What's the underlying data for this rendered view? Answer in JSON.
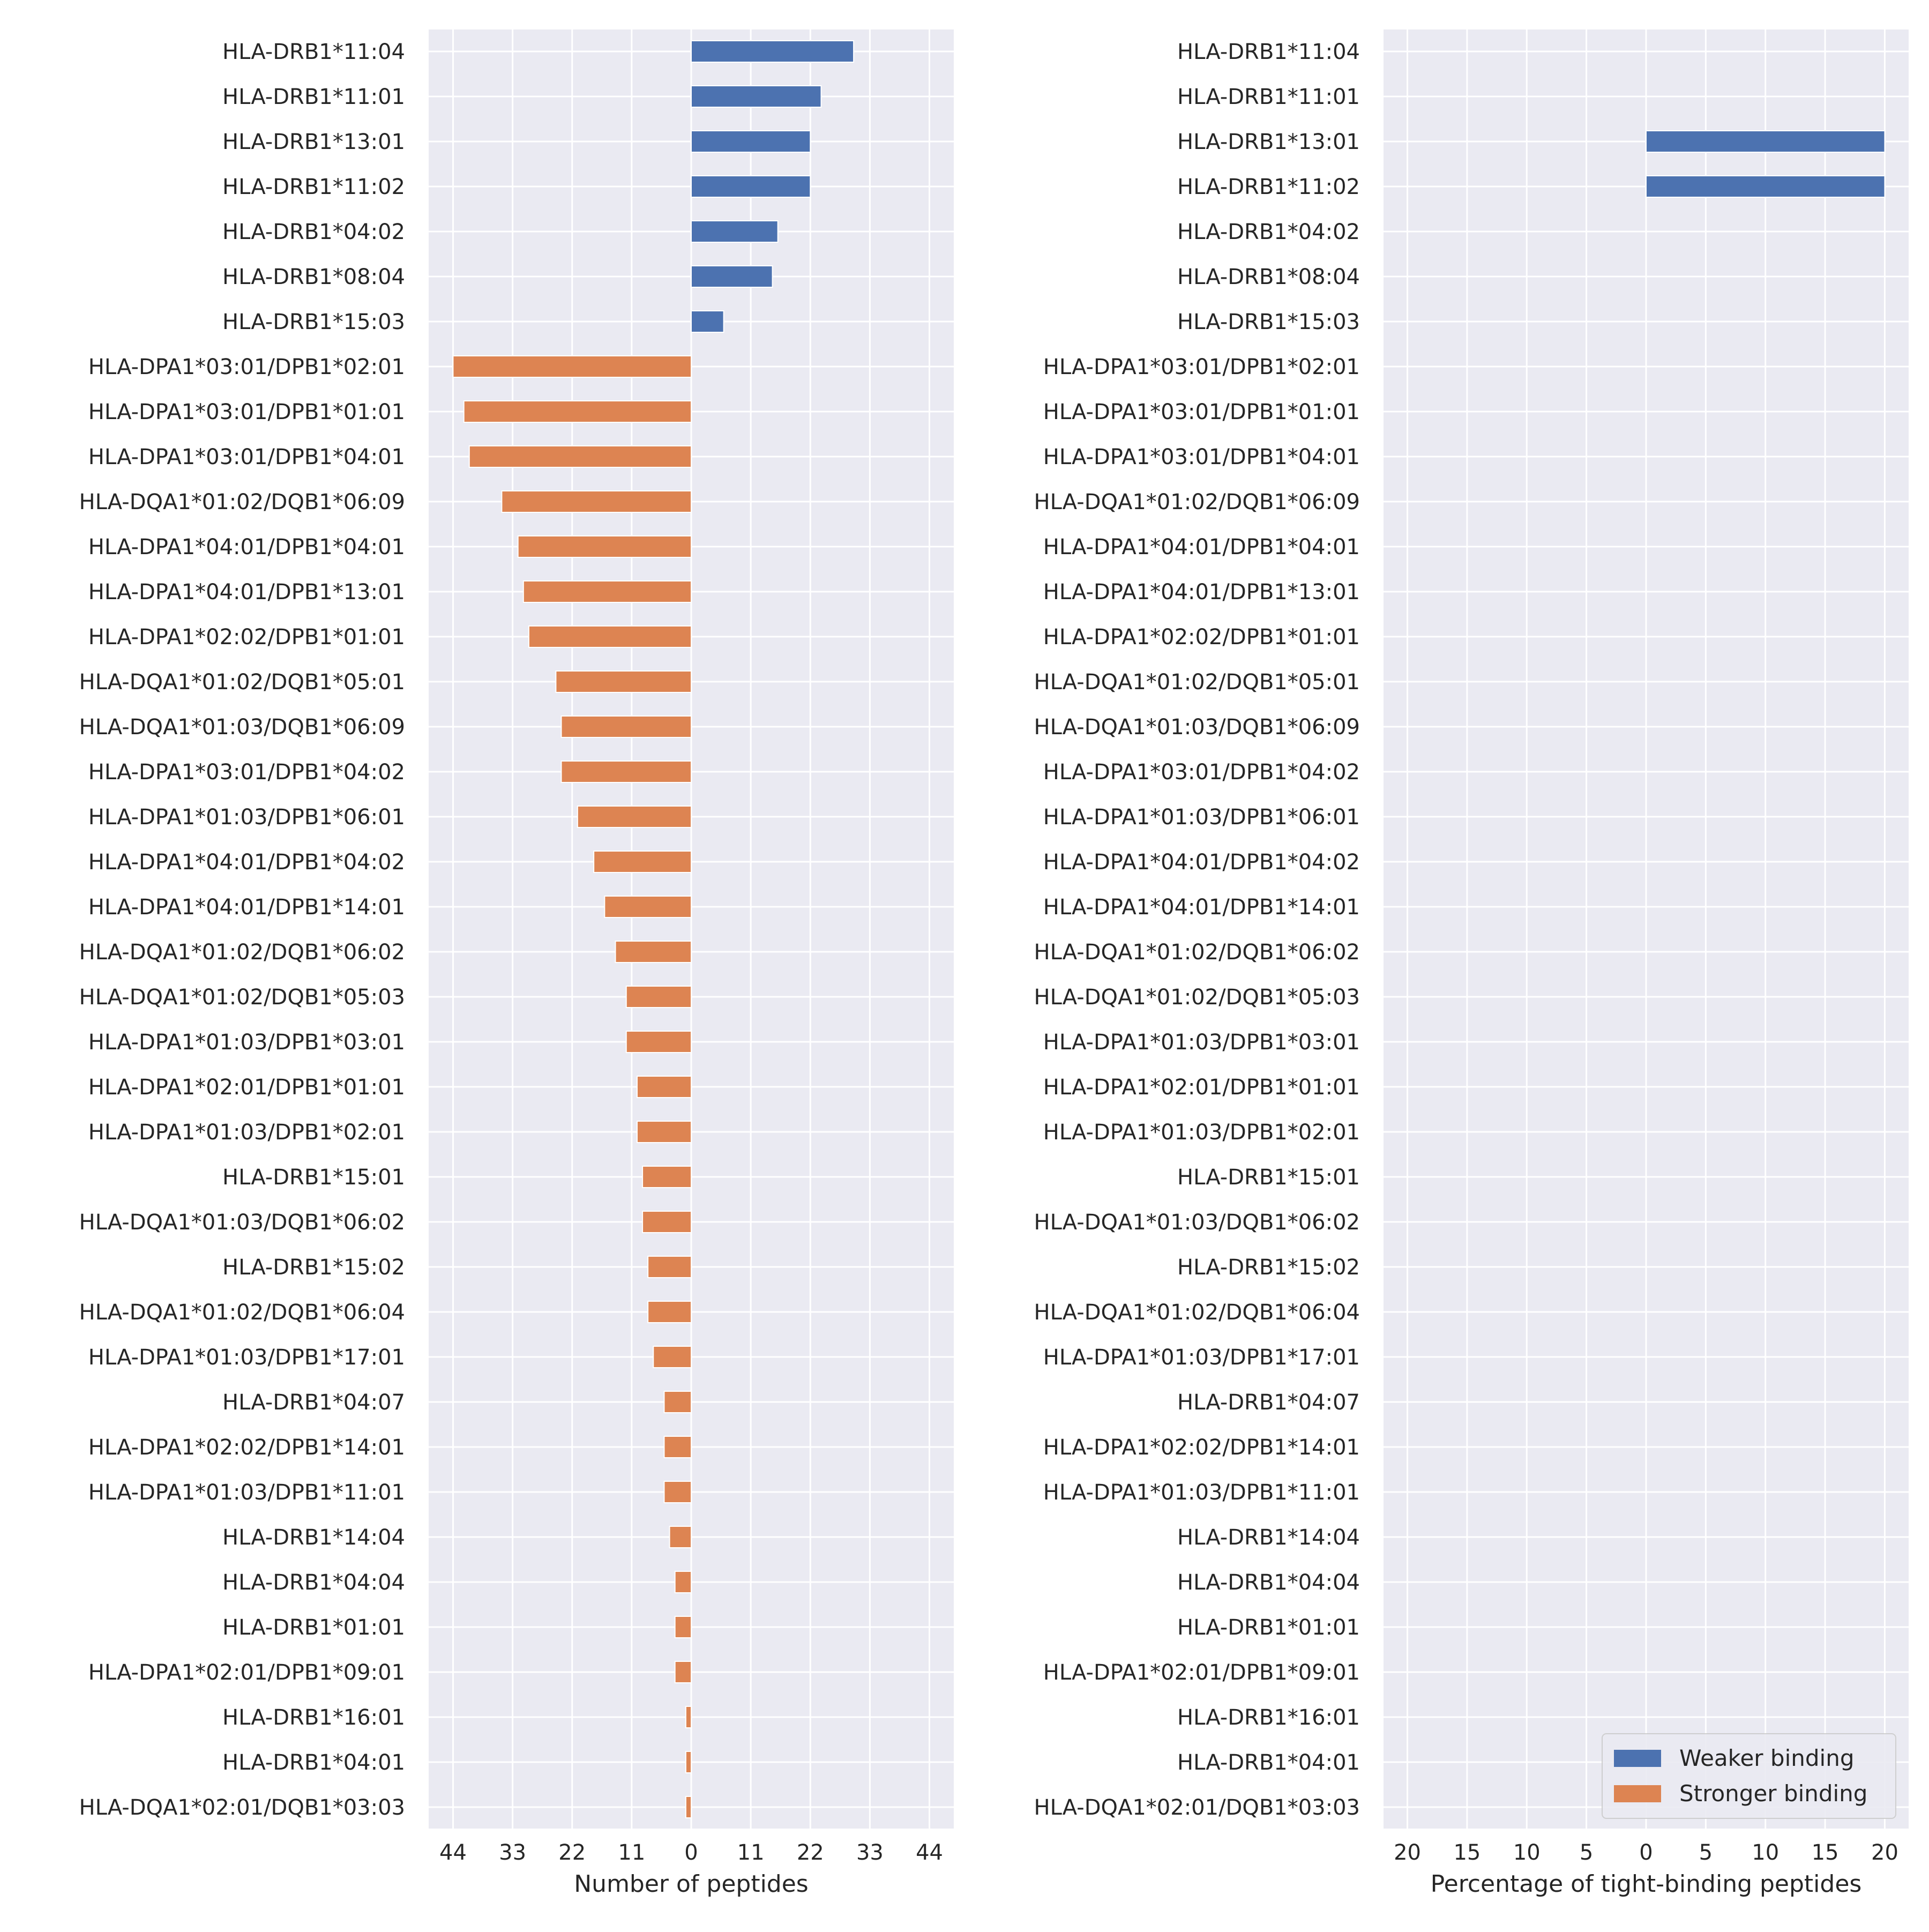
{
  "chart_data": [
    {
      "type": "bar",
      "orientation": "horizontal",
      "xlabel": "Number of peptides",
      "ylabel": "",
      "xlim": [
        -48.5,
        48.5
      ],
      "xticks": [
        -44,
        -33,
        -22,
        -11,
        0,
        11,
        22,
        33,
        44
      ],
      "xtick_labels": [
        "44",
        "33",
        "22",
        "11",
        "0",
        "11",
        "22",
        "33",
        "44"
      ],
      "grid": true,
      "categories": [
        "HLA-DRB1*11:04",
        "HLA-DRB1*11:01",
        "HLA-DRB1*13:01",
        "HLA-DRB1*11:02",
        "HLA-DRB1*04:02",
        "HLA-DRB1*08:04",
        "HLA-DRB1*15:03",
        "HLA-DPA1*03:01/DPB1*02:01",
        "HLA-DPA1*03:01/DPB1*01:01",
        "HLA-DPA1*03:01/DPB1*04:01",
        "HLA-DQA1*01:02/DQB1*06:09",
        "HLA-DPA1*04:01/DPB1*04:01",
        "HLA-DPA1*04:01/DPB1*13:01",
        "HLA-DPA1*02:02/DPB1*01:01",
        "HLA-DQA1*01:02/DQB1*05:01",
        "HLA-DQA1*01:03/DQB1*06:09",
        "HLA-DPA1*03:01/DPB1*04:02",
        "HLA-DPA1*01:03/DPB1*06:01",
        "HLA-DPA1*04:01/DPB1*04:02",
        "HLA-DPA1*04:01/DPB1*14:01",
        "HLA-DQA1*01:02/DQB1*06:02",
        "HLA-DQA1*01:02/DQB1*05:03",
        "HLA-DPA1*01:03/DPB1*03:01",
        "HLA-DPA1*02:01/DPB1*01:01",
        "HLA-DPA1*01:03/DPB1*02:01",
        "HLA-DRB1*15:01",
        "HLA-DQA1*01:03/DQB1*06:02",
        "HLA-DRB1*15:02",
        "HLA-DQA1*01:02/DQB1*06:04",
        "HLA-DPA1*01:03/DPB1*17:01",
        "HLA-DRB1*04:07",
        "HLA-DPA1*02:02/DPB1*14:01",
        "HLA-DPA1*01:03/DPB1*11:01",
        "HLA-DRB1*14:04",
        "HLA-DRB1*04:04",
        "HLA-DRB1*01:01",
        "HLA-DPA1*02:01/DPB1*09:01",
        "HLA-DRB1*16:01",
        "HLA-DRB1*04:01",
        "HLA-DQA1*02:01/DQB1*03:03"
      ],
      "series": [
        {
          "name": "Weaker binding",
          "color": "#4c72b0",
          "values": [
            30,
            24,
            22,
            22,
            16,
            15,
            6,
            0,
            0,
            0,
            0,
            0,
            0,
            0,
            0,
            0,
            0,
            0,
            0,
            0,
            0,
            0,
            0,
            0,
            0,
            0,
            0,
            0,
            0,
            0,
            0,
            0,
            0,
            0,
            0,
            0,
            0,
            0,
            0,
            0
          ]
        },
        {
          "name": "Stronger binding",
          "color": "#dd8452",
          "values": [
            0,
            0,
            0,
            0,
            0,
            0,
            0,
            -44,
            -42,
            -41,
            -35,
            -32,
            -31,
            -30,
            -25,
            -24,
            -24,
            -21,
            -18,
            -16,
            -14,
            -12,
            -12,
            -10,
            -10,
            -9,
            -9,
            -8,
            -8,
            -7,
            -5,
            -5,
            -5,
            -4,
            -3,
            -3,
            -3,
            -1,
            -1,
            -1
          ]
        }
      ]
    },
    {
      "type": "bar",
      "orientation": "horizontal",
      "xlabel": "Percentage of tight-binding peptides",
      "ylabel": "",
      "xlim": [
        -22,
        22
      ],
      "xticks": [
        -20,
        -15,
        -10,
        -5,
        0,
        5,
        10,
        15,
        20
      ],
      "xtick_labels": [
        "20",
        "15",
        "10",
        "5",
        "0",
        "5",
        "10",
        "15",
        "20"
      ],
      "grid": true,
      "legend_position": "lower-right",
      "categories": [
        "HLA-DRB1*11:04",
        "HLA-DRB1*11:01",
        "HLA-DRB1*13:01",
        "HLA-DRB1*11:02",
        "HLA-DRB1*04:02",
        "HLA-DRB1*08:04",
        "HLA-DRB1*15:03",
        "HLA-DPA1*03:01/DPB1*02:01",
        "HLA-DPA1*03:01/DPB1*01:01",
        "HLA-DPA1*03:01/DPB1*04:01",
        "HLA-DQA1*01:02/DQB1*06:09",
        "HLA-DPA1*04:01/DPB1*04:01",
        "HLA-DPA1*04:01/DPB1*13:01",
        "HLA-DPA1*02:02/DPB1*01:01",
        "HLA-DQA1*01:02/DQB1*05:01",
        "HLA-DQA1*01:03/DQB1*06:09",
        "HLA-DPA1*03:01/DPB1*04:02",
        "HLA-DPA1*01:03/DPB1*06:01",
        "HLA-DPA1*04:01/DPB1*04:02",
        "HLA-DPA1*04:01/DPB1*14:01",
        "HLA-DQA1*01:02/DQB1*06:02",
        "HLA-DQA1*01:02/DQB1*05:03",
        "HLA-DPA1*01:03/DPB1*03:01",
        "HLA-DPA1*02:01/DPB1*01:01",
        "HLA-DPA1*01:03/DPB1*02:01",
        "HLA-DRB1*15:01",
        "HLA-DQA1*01:03/DQB1*06:02",
        "HLA-DRB1*15:02",
        "HLA-DQA1*01:02/DQB1*06:04",
        "HLA-DPA1*01:03/DPB1*17:01",
        "HLA-DRB1*04:07",
        "HLA-DPA1*02:02/DPB1*14:01",
        "HLA-DPA1*01:03/DPB1*11:01",
        "HLA-DRB1*14:04",
        "HLA-DRB1*04:04",
        "HLA-DRB1*01:01",
        "HLA-DPA1*02:01/DPB1*09:01",
        "HLA-DRB1*16:01",
        "HLA-DRB1*04:01",
        "HLA-DQA1*02:01/DQB1*03:03"
      ],
      "series": [
        {
          "name": "Weaker binding",
          "color": "#4c72b0",
          "values": [
            0,
            0,
            20,
            20,
            0,
            0,
            0,
            0,
            0,
            0,
            0,
            0,
            0,
            0,
            0,
            0,
            0,
            0,
            0,
            0,
            0,
            0,
            0,
            0,
            0,
            0,
            0,
            0,
            0,
            0,
            0,
            0,
            0,
            0,
            0,
            0,
            0,
            0,
            0,
            0
          ]
        },
        {
          "name": "Stronger binding",
          "color": "#dd8452",
          "values": [
            0,
            0,
            0,
            0,
            0,
            0,
            0,
            0,
            0,
            0,
            0,
            0,
            0,
            0,
            0,
            0,
            0,
            0,
            0,
            0,
            0,
            0,
            0,
            0,
            0,
            0,
            0,
            0,
            0,
            0,
            0,
            0,
            0,
            0,
            0,
            0,
            0,
            0,
            0,
            0
          ]
        }
      ]
    }
  ],
  "style": {
    "plot_background": "#eaeaf2",
    "grid_color": "#ffffff",
    "text_color": "#262626"
  }
}
